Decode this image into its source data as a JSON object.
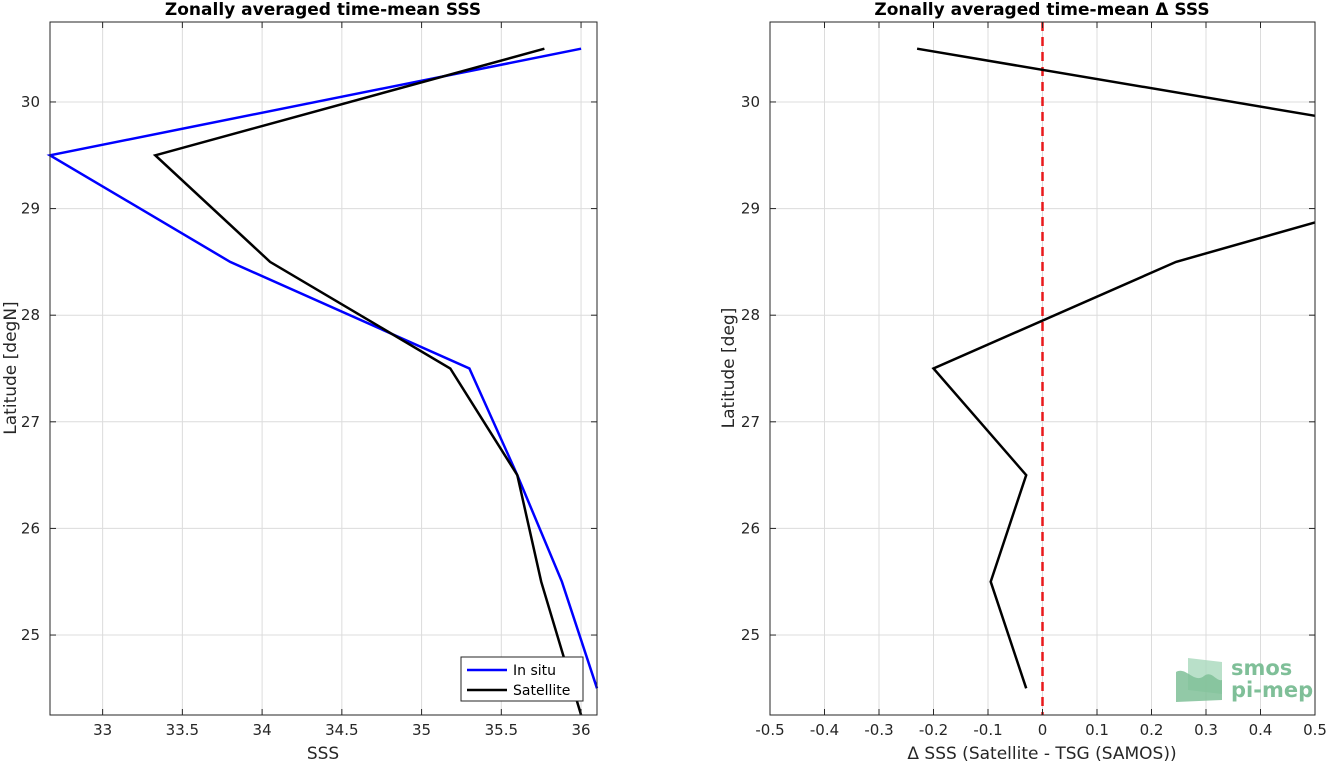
{
  "chart_data": [
    {
      "type": "line",
      "title": "Zonally averaged time-mean SSS",
      "xlabel": "SSS",
      "ylabel": "Latitude [degN]",
      "xlim": [
        32.67,
        36.1
      ],
      "ylim": [
        24.25,
        30.75
      ],
      "xticks": [
        33,
        33.5,
        34,
        34.5,
        35,
        35.5,
        36
      ],
      "xtick_labels": [
        "33",
        "33.5",
        "34",
        "34.5",
        "35",
        "35.5",
        "36"
      ],
      "yticks": [
        25,
        26,
        27,
        28,
        29,
        30
      ],
      "ytick_labels": [
        "25",
        "26",
        "27",
        "28",
        "29",
        "30"
      ],
      "grid": true,
      "legend_location": "bottom-right",
      "series": [
        {
          "name": "In situ",
          "color": "#0000ff",
          "points": [
            [
              36.1,
              24.5
            ],
            [
              35.88,
              25.5
            ],
            [
              35.6,
              26.5
            ],
            [
              35.3,
              27.5
            ],
            [
              33.8,
              28.5
            ],
            [
              32.67,
              29.5
            ],
            [
              36.0,
              30.5
            ]
          ]
        },
        {
          "name": "Satellite",
          "color": "#000000",
          "points": [
            [
              36.0,
              24.25
            ],
            [
              35.75,
              25.5
            ],
            [
              35.6,
              26.5
            ],
            [
              35.18,
              27.5
            ],
            [
              34.05,
              28.5
            ],
            [
              33.33,
              29.5
            ],
            [
              35.77,
              30.5
            ]
          ]
        }
      ]
    },
    {
      "type": "line",
      "title": "Zonally averaged time-mean Δ SSS",
      "xlabel": "Δ SSS (Satellite - TSG (SAMOS))",
      "ylabel": "Latitude [deg]",
      "xlim": [
        -0.5,
        0.5
      ],
      "ylim": [
        24.25,
        30.75
      ],
      "xticks": [
        -0.5,
        -0.4,
        -0.3,
        -0.2,
        -0.1,
        0,
        0.1,
        0.2,
        0.3,
        0.4,
        0.5
      ],
      "xtick_labels": [
        "-0.5",
        "-0.4",
        "-0.3",
        "-0.2",
        "-0.1",
        "0",
        "0.1",
        "0.2",
        "0.3",
        "0.4",
        "0.5"
      ],
      "yticks": [
        25,
        26,
        27,
        28,
        29,
        30
      ],
      "ytick_labels": [
        "25",
        "26",
        "27",
        "28",
        "29",
        "30"
      ],
      "grid": true,
      "reference_line": {
        "x": 0,
        "color": "#e8191c",
        "style": "dashed"
      },
      "series": [
        {
          "color": "#000000",
          "points": [
            [
              -0.03,
              24.5
            ],
            [
              -0.095,
              25.5
            ],
            [
              -0.03,
              26.5
            ],
            [
              -0.2,
              27.5
            ],
            [
              0.245,
              28.5
            ],
            [
              0.5,
              28.87
            ]
          ],
          "points_upper": [
            [
              0.5,
              29.87
            ],
            [
              -0.23,
              30.5
            ]
          ]
        }
      ]
    }
  ],
  "logo": {
    "line1": "smos",
    "line2": "pi-mep",
    "color": "#7fbf98"
  }
}
